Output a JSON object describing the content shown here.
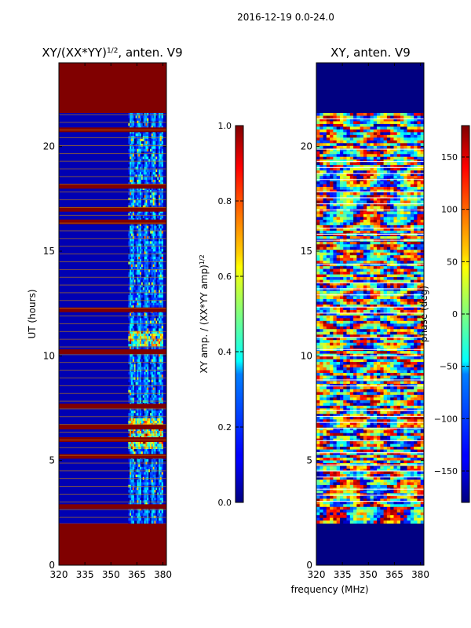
{
  "figure": {
    "suptitle": "2016-12-19 0.0-24.0"
  },
  "colors": {
    "jet_dark_red": "#800000",
    "jet_dark_blue": "#00007f",
    "frame": "#000000",
    "minor_grid": "#cc8800"
  },
  "chart_data": [
    {
      "type": "heatmap",
      "title_prefix": "XY/(XX*YY)",
      "title_sup": "1/2",
      "title_suffix": ", anten. V9",
      "xlabel": "",
      "ylabel": "UT (hours)",
      "xlim": [
        320,
        382
      ],
      "ylim": [
        0,
        24
      ],
      "xticks": [
        "320",
        "335",
        "350",
        "365",
        "380"
      ],
      "xtick_values": [
        320,
        335,
        350,
        365,
        380
      ],
      "yticks": [
        "0",
        "5",
        "10",
        "15",
        "20"
      ],
      "ytick_values": [
        0,
        5,
        10,
        15,
        20
      ],
      "colormap": "jet",
      "data_extent_hours": [
        2.0,
        21.6
      ],
      "fill_value_outside": 1.0,
      "background_level": 0.05,
      "active_band_mhz": [
        360,
        380
      ],
      "saturated_rows_hours": [
        2.8,
        5.2,
        6.0,
        6.6,
        7.6,
        10.2,
        12.2,
        16.4,
        17.0,
        18.1,
        20.8
      ],
      "colorbar": {
        "label_prefix": "XY amp. / (XX*YY amp)",
        "label_sup": "1/2",
        "range": [
          0.0,
          1.0
        ],
        "ticks": [
          "0.0",
          "0.2",
          "0.4",
          "0.6",
          "0.8",
          "1.0"
        ],
        "tick_values": [
          0.0,
          0.2,
          0.4,
          0.6,
          0.8,
          1.0
        ]
      }
    },
    {
      "type": "heatmap",
      "title": "XY, anten. V9",
      "xlabel": "frequency (MHz)",
      "ylabel": "",
      "xlim": [
        320,
        382
      ],
      "ylim": [
        0,
        24
      ],
      "xticks": [
        "320",
        "335",
        "350",
        "365",
        "380"
      ],
      "xtick_values": [
        320,
        335,
        350,
        365,
        380
      ],
      "yticks": [
        "0",
        "5",
        "10",
        "15",
        "20"
      ],
      "ytick_values": [
        0,
        5,
        10,
        15,
        20
      ],
      "colormap": "jet",
      "data_extent_hours": [
        2.0,
        21.6
      ],
      "fill_value_outside": -180,
      "colorbar": {
        "label": "phase (deg)",
        "range": [
          -180,
          180
        ],
        "ticks": [
          "−150",
          "−100",
          "−50",
          "0",
          "50",
          "100",
          "150"
        ],
        "tick_values": [
          -150,
          -100,
          -50,
          0,
          50,
          100,
          150
        ]
      }
    }
  ]
}
